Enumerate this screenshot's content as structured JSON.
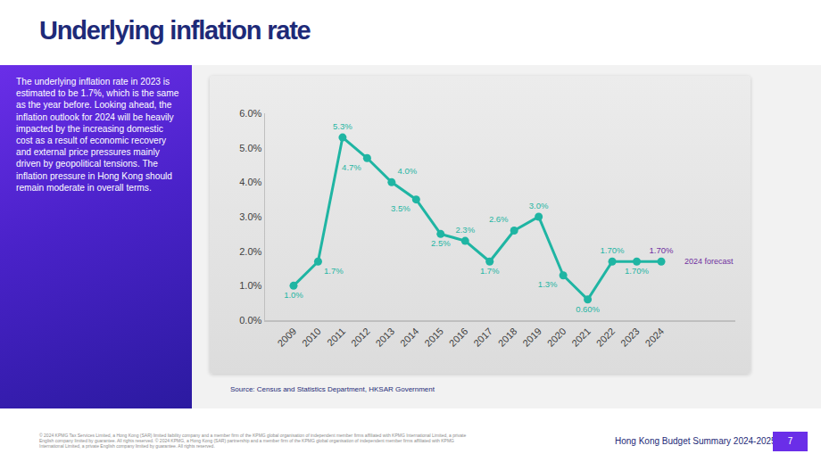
{
  "page_title": "Underlying inflation rate",
  "sidebar_text": "The underlying inflation rate in 2023 is estimated to be 1.7%, which is the same as the year before. Looking ahead, the inflation outlook for 2024 will be heavily impacted by the increasing domestic cost as a result of economic recovery and external price pressures mainly driven by geopolitical tensions. The inflation pressure in Hong Kong should remain moderate in overall terms.",
  "source": "Source: Census and Statistics Department, HKSAR Government",
  "footer": {
    "copyright": "© 2024 KPMG Tax Services Limited, a Hong Kong (SAR) limited liability company and a member firm of the KPMG global organisation of independent member firms affiliated with KPMG International Limited, a private English company limited by guarantee. All rights reserved. © 2024 KPMG, a Hong Kong (SAR) partnership and a member firm of the KPMG global organisation of independent member firms affiliated with KPMG International Limited, a private English company limited by guarantee. All rights reserved.",
    "title": "Hong Kong Budget Summary 2024-2025",
    "page": "7"
  },
  "chart_data": {
    "type": "line",
    "categories": [
      "2009",
      "2010",
      "2011",
      "2012",
      "2013",
      "2014",
      "2015",
      "2016",
      "2017",
      "2018",
      "2019",
      "2020",
      "2021",
      "2022",
      "2023",
      "2024"
    ],
    "values": [
      1.0,
      1.7,
      5.3,
      4.7,
      4.0,
      3.5,
      2.5,
      2.3,
      1.7,
      2.6,
      3.0,
      1.3,
      0.6,
      1.7,
      1.7,
      1.7
    ],
    "value_labels": [
      "1.0%",
      "1.7%",
      "5.3%",
      "4.7%",
      "4.0%",
      "3.5%",
      "2.5%",
      "2.3%",
      "1.7%",
      "2.6%",
      "3.0%",
      "1.3%",
      "0.60%",
      "1.70%",
      "1.70%",
      "1.70%"
    ],
    "data_labels": true,
    "color": "#1fb5a3",
    "marker": "circle",
    "line_style": "solid",
    "grid": false,
    "ylim": [
      0,
      6
    ],
    "yticks": [
      {
        "value": 0,
        "label": "0.0%"
      },
      {
        "value": 1,
        "label": "1.0%"
      },
      {
        "value": 2,
        "label": "2.0%"
      },
      {
        "value": 3,
        "label": "3.0%"
      },
      {
        "value": 4,
        "label": "4.0%"
      },
      {
        "value": 5,
        "label": "5.0%"
      },
      {
        "value": 6,
        "label": "6.0%"
      }
    ],
    "annotations": [
      {
        "text": "2024 forecast",
        "category": "2024",
        "color": "#7030a0"
      }
    ]
  }
}
